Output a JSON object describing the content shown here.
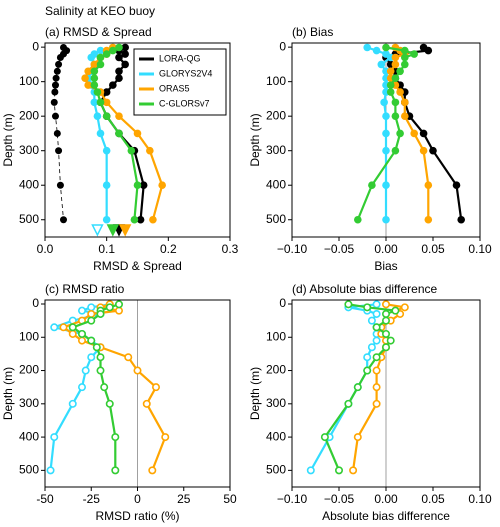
{
  "title": "Salinity at KEO buoy",
  "chart_data": [
    {
      "type": "profile",
      "title": "(a) RMSD & Spread",
      "xlabel": "RMSD & Spread",
      "ylabel": "Depth (m)",
      "xlim": [
        0,
        0.3
      ],
      "xticks": [
        {
          "value": 0,
          "label": "0.0"
        },
        0.1,
        0.2,
        0.3
      ],
      "ylim": [
        -12,
        550
      ],
      "yticks": [
        0,
        100,
        200,
        300,
        400,
        500
      ],
      "open_markers": false,
      "depth": [
        1,
        10,
        20,
        30,
        50,
        70,
        90,
        110,
        130,
        160,
        200,
        250,
        300,
        400,
        500
      ],
      "legend": "upper right",
      "series": [
        {
          "name": "LORA-QG",
          "color": "#000000",
          "values": [
            0.13,
            0.12,
            0.13,
            0.12,
            0.13,
            0.12,
            0.12,
            0.11,
            0.1,
            0.09,
            0.1,
            0.12,
            0.145,
            0.16,
            0.155
          ],
          "bottom_marker": 0.12
        },
        {
          "name": "GLORYS2V4",
          "color": "#33ddff",
          "values": [
            0.11,
            0.09,
            0.08,
            0.075,
            0.08,
            0.075,
            0.07,
            0.075,
            0.08,
            0.08,
            0.085,
            0.09,
            0.1,
            0.1,
            0.1
          ],
          "bottom_marker": 0.085,
          "bottom_open": true
        },
        {
          "name": "ORAS5",
          "color": "#ffa500",
          "values": [
            0.11,
            0.1,
            0.1,
            0.09,
            0.08,
            0.07,
            0.065,
            0.07,
            0.09,
            0.1,
            0.12,
            0.15,
            0.17,
            0.19,
            0.175
          ],
          "bottom_marker": 0.13
        },
        {
          "name": "C-GLORSv7",
          "color": "#33cc33",
          "values": [
            0.12,
            0.11,
            0.1,
            0.09,
            0.09,
            0.08,
            0.08,
            0.08,
            0.085,
            0.09,
            0.1,
            0.12,
            0.14,
            0.15,
            0.145
          ],
          "bottom_marker": 0.11
        }
      ],
      "spread": {
        "color": "#000000",
        "values": [
          0.03,
          0.035,
          0.03,
          0.025,
          0.022,
          0.02,
          0.018,
          0.017,
          0.016,
          0.015,
          0.017,
          0.02,
          0.022,
          0.025,
          0.03
        ]
      }
    },
    {
      "type": "profile",
      "title": "(b) Bias",
      "xlabel": "Bias",
      "ylabel": "Depth (m)",
      "xlim": [
        -0.1,
        0.1
      ],
      "xticks": [
        {
          "value": -0.1,
          "label": "−0.10"
        },
        {
          "value": -0.05,
          "label": "−0.05"
        },
        {
          "value": 0,
          "label": "0.00"
        },
        0.05,
        {
          "value": 0.1,
          "label": "0.10"
        }
      ],
      "ylim": [
        -12,
        550
      ],
      "yticks": [
        0,
        100,
        200,
        300,
        400,
        500
      ],
      "open_markers": false,
      "zero_line": 0,
      "depth": [
        1,
        10,
        20,
        30,
        50,
        70,
        90,
        110,
        130,
        160,
        200,
        250,
        300,
        400,
        500
      ],
      "series": [
        {
          "color": "#000000",
          "values": [
            0.04,
            0.045,
            0.01,
            0.0,
            0.005,
            0.01,
            0.01,
            0.015,
            0.02,
            0.02,
            0.025,
            0.04,
            0.05,
            0.075,
            0.08
          ]
        },
        {
          "color": "#33ddff",
          "values": [
            -0.02,
            -0.01,
            0.0,
            0.005,
            -0.005,
            0.0,
            0.0,
            0.0,
            0.0,
            -0.002,
            0.0,
            0.0,
            0.0,
            0.0,
            0.0
          ]
        },
        {
          "color": "#ffa500",
          "values": [
            0.01,
            0.015,
            0.02,
            0.01,
            0.01,
            0.005,
            0.005,
            0.01,
            0.015,
            0.02,
            0.02,
            0.03,
            0.04,
            0.045,
            0.045
          ]
        },
        {
          "color": "#33cc33",
          "values": [
            0.0,
            0.02,
            0.03,
            0.02,
            0.02,
            0.015,
            0.01,
            0.005,
            0.005,
            0.01,
            0.01,
            0.015,
            0.01,
            -0.015,
            -0.03
          ]
        }
      ]
    },
    {
      "type": "profile",
      "title": "(c) RMSD ratio",
      "xlabel": "RMSD ratio (%)",
      "ylabel": "Depth (m)",
      "xlim": [
        -50,
        50
      ],
      "xticks": [
        -50,
        -25,
        0,
        25,
        50
      ],
      "ylim": [
        -12,
        550
      ],
      "yticks": [
        0,
        100,
        200,
        300,
        400,
        500
      ],
      "open_markers": true,
      "zero_line": 0,
      "depth": [
        1,
        10,
        20,
        30,
        50,
        70,
        90,
        110,
        130,
        160,
        200,
        250,
        300,
        400,
        500
      ],
      "series": [
        {
          "color": "#33ddff",
          "values": [
            -15,
            -25,
            -30,
            -20,
            -35,
            -45,
            -30,
            -25,
            -20,
            -25,
            -28,
            -30,
            -35,
            -45,
            -47
          ]
        },
        {
          "color": "#ffa500",
          "values": [
            -15,
            -20,
            -10,
            -25,
            -30,
            -40,
            -35,
            -30,
            -20,
            -5,
            0,
            10,
            5,
            15,
            8
          ]
        },
        {
          "color": "#33cc33",
          "values": [
            -10,
            -15,
            -20,
            -20,
            -25,
            -35,
            -30,
            -25,
            -22,
            -20,
            -20,
            -18,
            -15,
            -12,
            -12
          ]
        }
      ]
    },
    {
      "type": "profile",
      "title": "(d) Absolute bias difference",
      "xlabel": "Absolute bias difference",
      "ylabel": "Depth (m)",
      "xlim": [
        -0.1,
        0.1
      ],
      "xticks": [
        {
          "value": -0.1,
          "label": "−0.10"
        },
        {
          "value": -0.05,
          "label": "−0.05"
        },
        {
          "value": 0,
          "label": "0.00"
        },
        0.05,
        {
          "value": 0.1,
          "label": "0.10"
        }
      ],
      "ylim": [
        -12,
        550
      ],
      "yticks": [
        0,
        100,
        200,
        300,
        400,
        500
      ],
      "open_markers": true,
      "zero_line": 0,
      "depth": [
        1,
        10,
        20,
        30,
        50,
        70,
        90,
        110,
        130,
        160,
        200,
        250,
        300,
        400,
        500
      ],
      "series": [
        {
          "color": "#33ddff",
          "values": [
            -0.01,
            -0.04,
            -0.02,
            -0.01,
            -0.015,
            -0.01,
            -0.01,
            -0.01,
            -0.015,
            -0.02,
            -0.02,
            -0.03,
            -0.04,
            -0.06,
            -0.08
          ]
        },
        {
          "color": "#ffa500",
          "values": [
            0.0,
            0.02,
            0.01,
            0.015,
            0.005,
            -0.005,
            -0.005,
            0.0,
            0.0,
            -0.005,
            -0.01,
            -0.01,
            -0.01,
            -0.03,
            -0.035
          ]
        },
        {
          "color": "#33cc33",
          "values": [
            -0.04,
            -0.02,
            0.01,
            0.0,
            0.0,
            -0.01,
            0.0,
            0.005,
            0.0,
            -0.01,
            -0.02,
            -0.03,
            -0.04,
            -0.065,
            -0.05
          ]
        }
      ]
    }
  ]
}
